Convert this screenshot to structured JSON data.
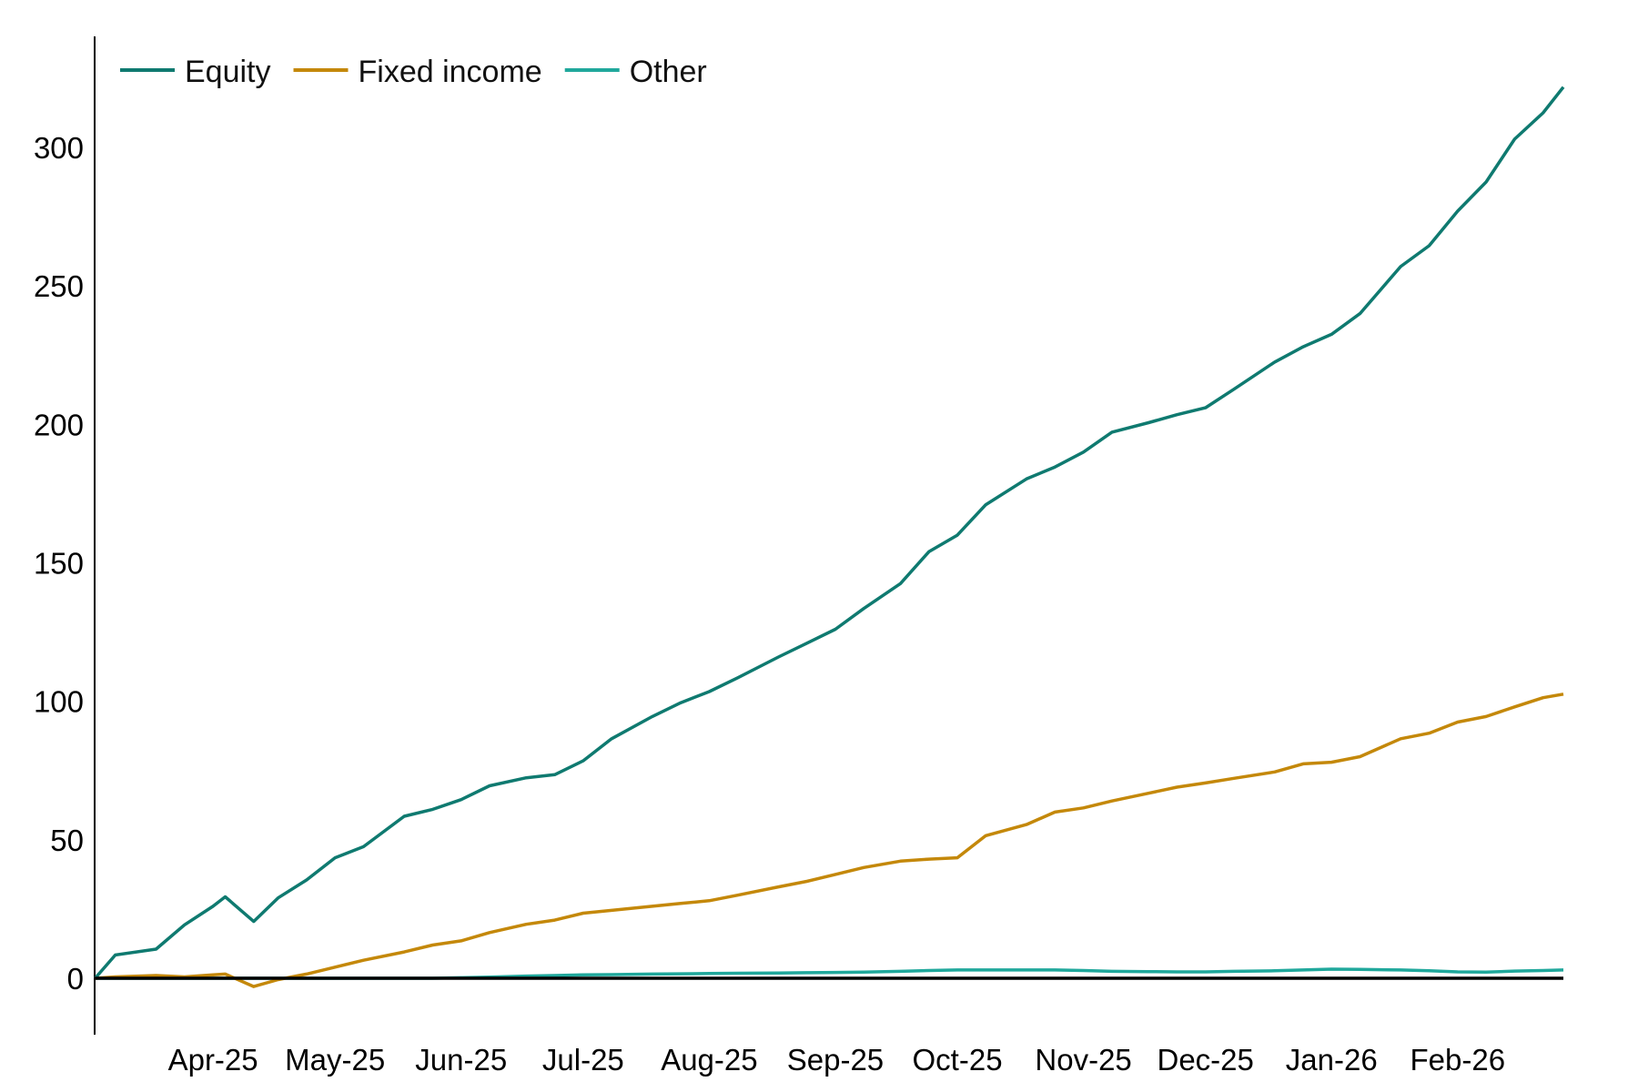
{
  "chart_data": {
    "type": "line",
    "title": "",
    "xlabel": "",
    "ylabel": "",
    "ylim": [
      -20,
      335
    ],
    "yticks": [
      "0",
      "50",
      "100",
      "150",
      "200",
      "250",
      "300"
    ],
    "xtick_labels": [
      "Apr-25",
      "May-25",
      "Jun-25",
      "Jul-25",
      "Aug-25",
      "Sep-25",
      "Oct-25",
      "Nov-25",
      "Dec-25",
      "Jan-26",
      "Feb-26"
    ],
    "xtick_dates": [
      "2025-04-15",
      "2025-05-15",
      "2025-06-15",
      "2025-07-15",
      "2025-08-15",
      "2025-09-15",
      "2025-10-15",
      "2025-11-15",
      "2025-12-15",
      "2026-01-15",
      "2026-02-15"
    ],
    "grid": false,
    "legend": "top-left",
    "x": [
      "2025-03-17",
      "2025-03-22",
      "2025-04-01",
      "2025-04-08",
      "2025-04-15",
      "2025-04-18",
      "2025-04-25",
      "2025-05-01",
      "2025-05-08",
      "2025-05-15",
      "2025-05-22",
      "2025-06-01",
      "2025-06-08",
      "2025-06-15",
      "2025-06-22",
      "2025-07-01",
      "2025-07-08",
      "2025-07-15",
      "2025-07-22",
      "2025-08-01",
      "2025-08-08",
      "2025-08-15",
      "2025-08-22",
      "2025-09-01",
      "2025-09-08",
      "2025-09-15",
      "2025-09-22",
      "2025-10-01",
      "2025-10-08",
      "2025-10-15",
      "2025-10-22",
      "2025-11-01",
      "2025-11-08",
      "2025-11-15",
      "2025-11-22",
      "2025-12-01",
      "2025-12-08",
      "2025-12-15",
      "2025-12-22",
      "2026-01-01",
      "2026-01-08",
      "2026-01-15",
      "2026-01-22",
      "2026-02-01",
      "2026-02-08",
      "2026-02-15",
      "2026-02-22",
      "2026-03-01",
      "2026-03-08",
      "2026-03-13"
    ],
    "series": [
      {
        "name": "Equity",
        "color": "#0f7a70",
        "values": [
          0,
          8.4,
          10.5,
          19.3,
          26,
          29.4,
          20.5,
          29,
          35.5,
          43.5,
          47.5,
          58.5,
          61,
          64.5,
          69.5,
          72.4,
          73.5,
          78.5,
          86.5,
          94.5,
          99.5,
          103.5,
          108.5,
          116,
          121,
          126,
          133.5,
          142.5,
          154,
          160,
          171,
          180.3,
          184.6,
          190,
          197.2,
          200.6,
          203.5,
          206,
          212.7,
          222.5,
          228,
          232.5,
          240,
          257,
          264.5,
          277,
          287.5,
          303,
          312.5,
          321.8
        ]
      },
      {
        "name": "Fixed income",
        "color": "#c4880a",
        "values": [
          0,
          0.5,
          1,
          0.5,
          1.2,
          1.5,
          -3,
          -0.5,
          1.5,
          4,
          6.5,
          9.5,
          12,
          13.5,
          16.5,
          19.5,
          21,
          23.5,
          24.5,
          26,
          27,
          28,
          30,
          33,
          35,
          37.5,
          40,
          42.3,
          43,
          43.5,
          51.5,
          55.5,
          60,
          61.5,
          64,
          66.8,
          69,
          70.5,
          72.2,
          74.5,
          77.4,
          78,
          80,
          86.5,
          88.5,
          92.5,
          94.5,
          98,
          101.3,
          102.6
        ]
      },
      {
        "name": "Other",
        "color": "#20a89c",
        "values": [
          0,
          0,
          0,
          0,
          0,
          0,
          0,
          0,
          0,
          0,
          0,
          0,
          0,
          0.2,
          0.4,
          0.8,
          1,
          1.2,
          1.3,
          1.5,
          1.6,
          1.7,
          1.8,
          1.9,
          2,
          2.1,
          2.2,
          2.5,
          2.8,
          3,
          3,
          3,
          3,
          2.8,
          2.5,
          2.4,
          2.3,
          2.3,
          2.5,
          2.7,
          3,
          3.3,
          3.2,
          3,
          2.7,
          2.3,
          2.2,
          2.6,
          2.8,
          3
        ]
      }
    ]
  }
}
